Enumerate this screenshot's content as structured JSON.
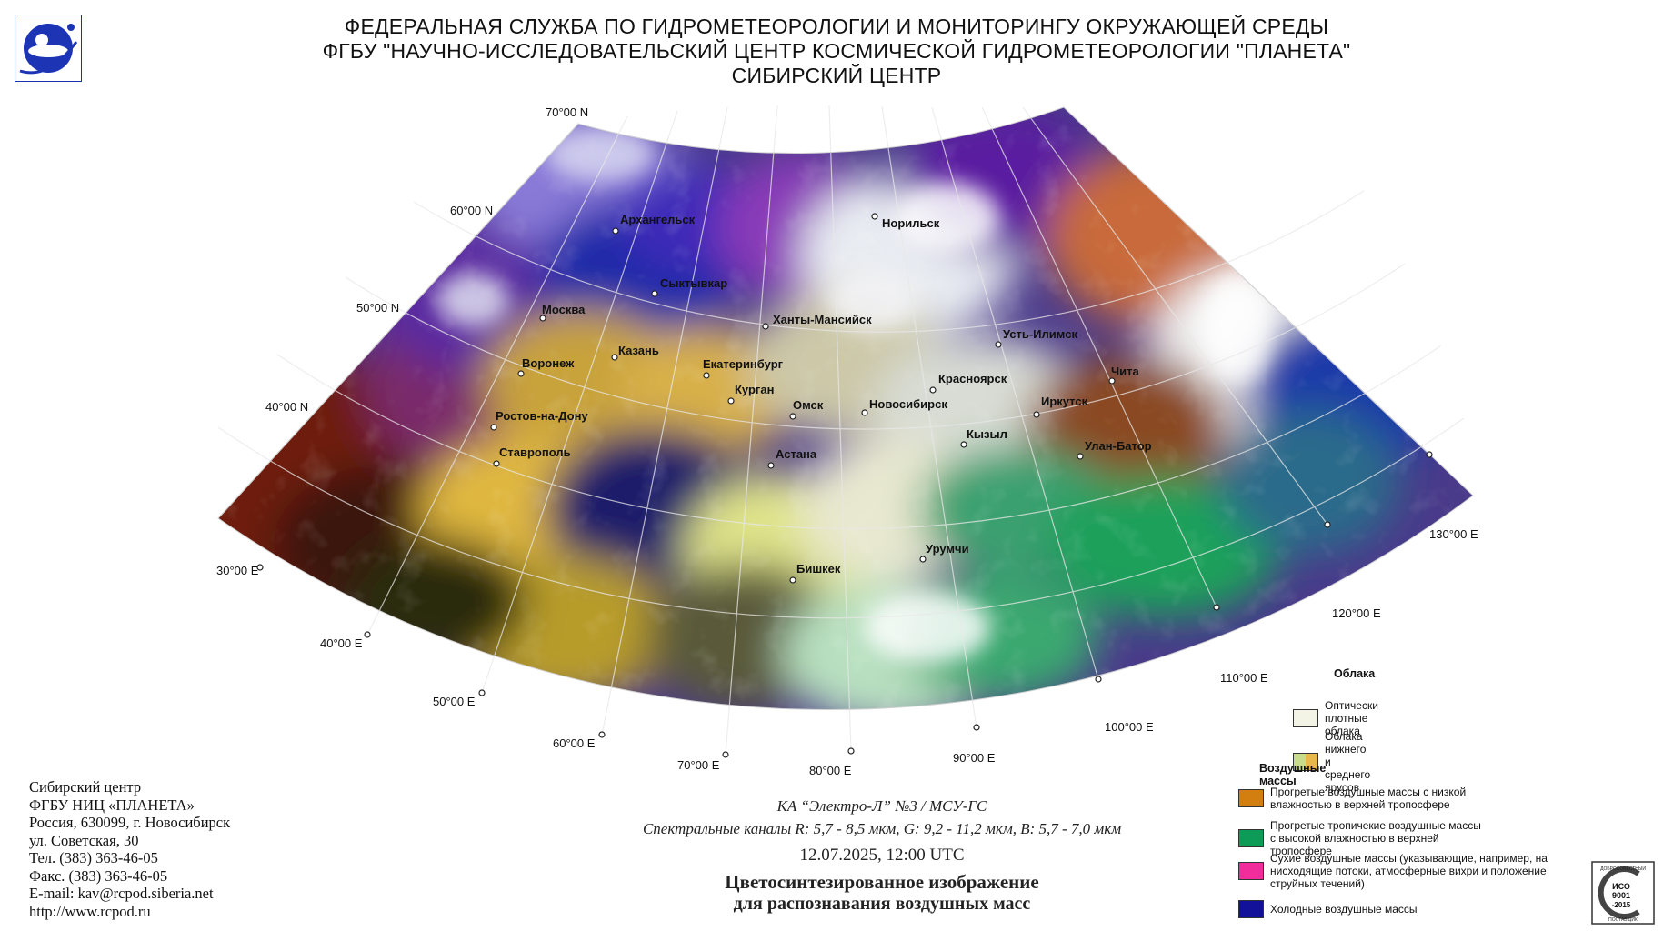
{
  "header": {
    "line1": "ФЕДЕРАЛЬНАЯ СЛУЖБА ПО ГИДРОМЕТЕОРОЛОГИИ И МОНИТОРИНГУ ОКРУЖАЮЩЕЙ СРЕДЫ",
    "line2": "ФГБУ \"НАУЧНО-ИССЛЕДОВАТЕЛЬСКИЙ ЦЕНТР КОСМИЧЕСКОЙ ГИДРОМЕТЕОРОЛОГИИ \"ПЛАНЕТА\"",
    "line3": "СИБИРСКИЙ ЦЕНТР"
  },
  "map": {
    "lat_labels": [
      "70°00 N",
      "60°00 N",
      "50°00 N",
      "40°00 N"
    ],
    "lon_labels": [
      "30°00 E",
      "40°00 E",
      "50°00 E",
      "60°00 E",
      "70°00 E",
      "80°00 E",
      "90°00 E",
      "100°00 E",
      "110°00 E",
      "120°00 E",
      "130°00 E"
    ],
    "cities": [
      "Архангельск",
      "Норильск",
      "Сыктывкар",
      "Москва",
      "Ханты-Мансийск",
      "Казань",
      "Усть-Илимск",
      "Воронеж",
      "Екатеринбург",
      "Чита",
      "Красноярск",
      "Курган",
      "Омск",
      "Новосибирск",
      "Иркутск",
      "Ростов-на-Дону",
      "Кызыл",
      "Улан-Батор",
      "Ставрополь",
      "Астана",
      "Урумчи",
      "Бишкек"
    ]
  },
  "org": {
    "name": "Сибирский центр",
    "inst": "ФГБУ НИЦ «ПЛАНЕТА»",
    "city": "Россия, 630099, г. Новосибирск",
    "street": "ул. Советская, 30",
    "phone": "Тел. (383) 363-46-05",
    "fax": "Факс. (383) 363-46-05",
    "email": "E-mail: kav@rcpod.siberia.net",
    "web": "http://www.rcpod.ru"
  },
  "caption": {
    "satellite": "КА “Электро-Л” №3 / МСУ-ГС",
    "channels": "Спектральные каналы R: 5,7 - 8,5 мкм, G: 9,2 - 11,2 мкм, B: 5,7 - 7,0 мкм",
    "datetime": "12.07.2025, 12:00 UTC",
    "title1": "Цветосинтезированное изображение",
    "title2": "для распознавания воздушных масс"
  },
  "legend": {
    "clouds_title": "Облака",
    "dense": "Оптически плотные облака",
    "lowmid": "Облака нижнего и среднего ярусов",
    "masses_title": "Воздушные массы",
    "warm_dry": "Прогретые воздушные массы с низкой влажностью в верхней тропосфере",
    "warm_humid": "Прогретые тропичекие воздушные массы с высокой влажностью в верхней тропосфере",
    "dry": "Сухие воздушные массы (указывающие, например, на нисходящие потоки, атмосферные вихри и положение струйных течений)",
    "cold": "Холодные воздушные массы",
    "colors": {
      "dense": "#f3f3e6",
      "lowmid_left": "#c8dc8c",
      "lowmid_right": "#e8b84a",
      "warm_dry": "#d27f10",
      "warm_humid": "#0c9c58",
      "dry": "#f02d9b",
      "cold": "#111199"
    }
  },
  "iso": {
    "top": "ДОБРОСОВЕСТНЫЙ",
    "line1": "ИСО",
    "line2": "9001",
    "line3": "-2015",
    "bottom": "ПОСТАВЩИК"
  }
}
